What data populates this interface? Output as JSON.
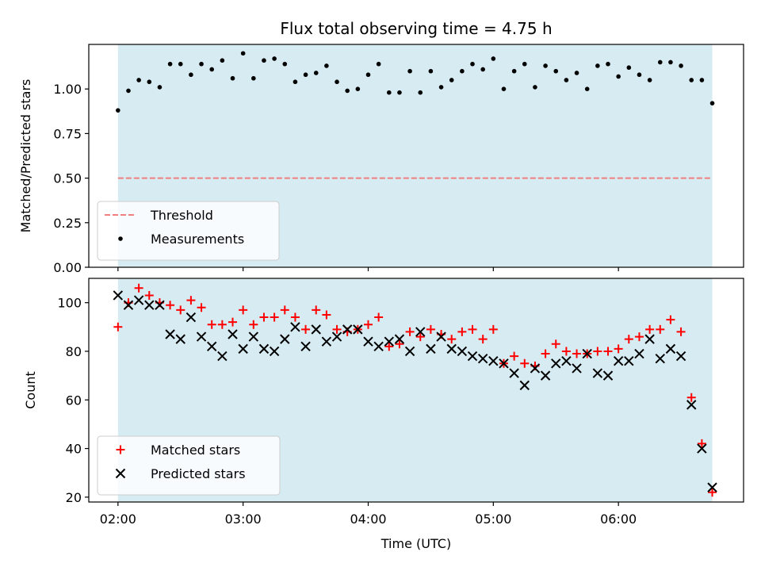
{
  "chart_data": [
    {
      "type": "scatter",
      "title": "Flux total observing time = 4.75 h",
      "xlabel": "",
      "ylabel": "Matched/Predicted stars",
      "xlim": [
        "01:46",
        "07:00"
      ],
      "ylim": [
        0,
        1.25
      ],
      "yticks": [
        "0.00",
        "0.25",
        "0.50",
        "0.75",
        "1.00"
      ],
      "grid": false,
      "legend_position": "lower-left",
      "shaded_interval": [
        "02:00",
        "06:45"
      ],
      "shade_color": "#add8e6",
      "threshold": {
        "name": "Threshold",
        "value": 0.5,
        "color": "#f08080",
        "style": "dashed"
      },
      "series": [
        {
          "name": "Measurements",
          "color": "#000000",
          "marker": "dot",
          "x": [
            "02:00",
            "02:05",
            "02:10",
            "02:15",
            "02:20",
            "02:25",
            "02:30",
            "02:35",
            "02:40",
            "02:45",
            "02:50",
            "02:55",
            "03:00",
            "03:05",
            "03:10",
            "03:15",
            "03:20",
            "03:25",
            "03:30",
            "03:35",
            "03:40",
            "03:45",
            "03:50",
            "03:55",
            "04:00",
            "04:05",
            "04:10",
            "04:15",
            "04:20",
            "04:25",
            "04:30",
            "04:35",
            "04:40",
            "04:45",
            "04:50",
            "04:55",
            "05:00",
            "05:05",
            "05:10",
            "05:15",
            "05:20",
            "05:25",
            "05:30",
            "05:35",
            "05:40",
            "05:45",
            "05:50",
            "05:55",
            "06:00",
            "06:05",
            "06:10",
            "06:15",
            "06:20",
            "06:25",
            "06:30",
            "06:35",
            "06:40",
            "06:45"
          ],
          "values": [
            0.88,
            0.99,
            1.05,
            1.04,
            1.01,
            1.14,
            1.14,
            1.08,
            1.14,
            1.11,
            1.16,
            1.06,
            1.2,
            1.06,
            1.16,
            1.17,
            1.14,
            1.04,
            1.08,
            1.09,
            1.13,
            1.04,
            0.99,
            1.0,
            1.08,
            1.14,
            0.98,
            0.98,
            1.1,
            0.98,
            1.1,
            1.01,
            1.05,
            1.1,
            1.14,
            1.11,
            1.17,
            1.0,
            1.1,
            1.14,
            1.01,
            1.13,
            1.1,
            1.05,
            1.09,
            1.0,
            1.13,
            1.14,
            1.07,
            1.12,
            1.08,
            1.05,
            1.15,
            1.15,
            1.13,
            1.05,
            1.05,
            0.92
          ]
        }
      ]
    },
    {
      "type": "scatter",
      "title": "",
      "xlabel": "Time (UTC)",
      "ylabel": "Count",
      "xlim": [
        "01:46",
        "07:00"
      ],
      "ylim": [
        18,
        110
      ],
      "yticks": [
        "20",
        "40",
        "60",
        "80",
        "100"
      ],
      "xticks": [
        "02:00",
        "03:00",
        "04:00",
        "05:00",
        "06:00"
      ],
      "grid": false,
      "legend_position": "lower-left",
      "shaded_interval": [
        "02:00",
        "06:45"
      ],
      "shade_color": "#add8e6",
      "series": [
        {
          "name": "Matched stars",
          "color": "#ff0000",
          "marker": "plus",
          "x": [
            "02:00",
            "02:05",
            "02:10",
            "02:15",
            "02:20",
            "02:25",
            "02:30",
            "02:35",
            "02:40",
            "02:45",
            "02:50",
            "02:55",
            "03:00",
            "03:05",
            "03:10",
            "03:15",
            "03:20",
            "03:25",
            "03:30",
            "03:35",
            "03:40",
            "03:45",
            "03:50",
            "03:55",
            "04:00",
            "04:05",
            "04:10",
            "04:15",
            "04:20",
            "04:25",
            "04:30",
            "04:35",
            "04:40",
            "04:45",
            "04:50",
            "04:55",
            "05:00",
            "05:05",
            "05:10",
            "05:15",
            "05:20",
            "05:25",
            "05:30",
            "05:35",
            "05:40",
            "05:45",
            "05:50",
            "05:55",
            "06:00",
            "06:05",
            "06:10",
            "06:15",
            "06:20",
            "06:25",
            "06:30",
            "06:35",
            "06:40",
            "06:45"
          ],
          "values": [
            90,
            100,
            106,
            103,
            100,
            99,
            97,
            101,
            98,
            91,
            91,
            92,
            97,
            91,
            94,
            94,
            97,
            94,
            89,
            97,
            95,
            89,
            88,
            89,
            91,
            94,
            82,
            83,
            88,
            86,
            89,
            87,
            85,
            88,
            89,
            85,
            89,
            75,
            78,
            75,
            74,
            79,
            83,
            80,
            79,
            79,
            80,
            80,
            81,
            85,
            86,
            89,
            89,
            93,
            88,
            61,
            42,
            22
          ]
        },
        {
          "name": "Predicted stars",
          "color": "#000000",
          "marker": "x",
          "x": [
            "02:00",
            "02:05",
            "02:10",
            "02:15",
            "02:20",
            "02:25",
            "02:30",
            "02:35",
            "02:40",
            "02:45",
            "02:50",
            "02:55",
            "03:00",
            "03:05",
            "03:10",
            "03:15",
            "03:20",
            "03:25",
            "03:30",
            "03:35",
            "03:40",
            "03:45",
            "03:50",
            "03:55",
            "04:00",
            "04:05",
            "04:10",
            "04:15",
            "04:20",
            "04:25",
            "04:30",
            "04:35",
            "04:40",
            "04:45",
            "04:50",
            "04:55",
            "05:00",
            "05:05",
            "05:10",
            "05:15",
            "05:20",
            "05:25",
            "05:30",
            "05:35",
            "05:40",
            "05:45",
            "05:50",
            "05:55",
            "06:00",
            "06:05",
            "06:10",
            "06:15",
            "06:20",
            "06:25",
            "06:30",
            "06:35",
            "06:40",
            "06:45"
          ],
          "values": [
            103,
            99,
            101,
            99,
            99,
            87,
            85,
            94,
            86,
            82,
            78,
            87,
            81,
            86,
            81,
            80,
            85,
            90,
            82,
            89,
            84,
            86,
            89,
            89,
            84,
            82,
            84,
            85,
            80,
            88,
            81,
            86,
            81,
            80,
            78,
            77,
            76,
            75,
            71,
            66,
            73,
            70,
            75,
            76,
            73,
            79,
            71,
            70,
            76,
            76,
            79,
            85,
            77,
            81,
            78,
            58,
            40,
            24
          ]
        }
      ]
    }
  ]
}
